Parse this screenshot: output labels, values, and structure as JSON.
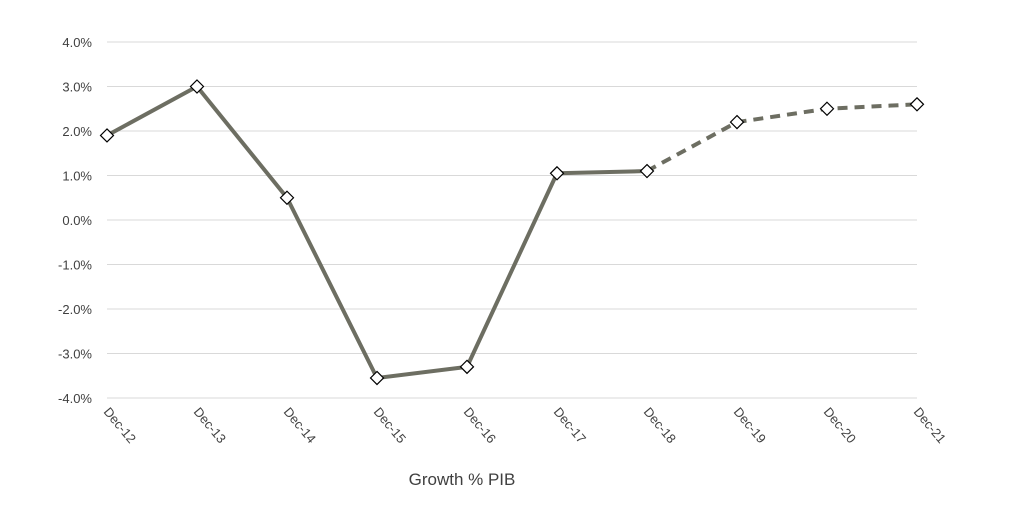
{
  "chart_data": {
    "type": "line",
    "title": "",
    "xlabel": "Growth % PIB",
    "ylabel": "",
    "categories": [
      "Dec-12",
      "Dec-13",
      "Dec-14",
      "Dec-15",
      "Dec-16",
      "Dec-17",
      "Dec-18",
      "Dec-19",
      "Dec-20",
      "Dec-21"
    ],
    "series": [
      {
        "values": [
          1.9,
          3.0,
          0.5,
          -3.55,
          -3.3,
          1.05,
          1.1,
          2.2,
          2.5,
          2.6
        ],
        "actual_through_index": 6,
        "projected_from_index": 6,
        "line_style_actual": "solid",
        "line_style_projected": "dashed",
        "marker": "diamond",
        "color": "#6d6e62"
      }
    ],
    "ylim": [
      -4.0,
      4.0
    ],
    "yticks": [
      "4.0%",
      "3.0%",
      "2.0%",
      "1.0%",
      "0.0%",
      "-1.0%",
      "-2.0%",
      "-3.0%",
      "-4.0%"
    ],
    "ytick_values": [
      4,
      3,
      2,
      1,
      0,
      -1,
      -2,
      -3,
      -4
    ],
    "grid": true,
    "legend": "none",
    "colors": {
      "line": "#6d6e62",
      "grid": "#d9d9d9",
      "text": "#404040"
    }
  }
}
